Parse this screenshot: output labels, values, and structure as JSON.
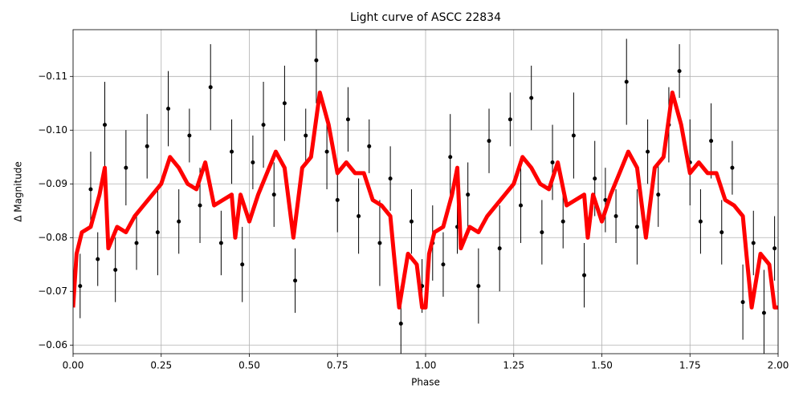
{
  "chart_data": {
    "type": "scatter",
    "title": "Light curve of ASCC 22834",
    "x_label": "Phase",
    "y_label": "Δ Magnitude",
    "xlim": [
      0,
      2
    ],
    "ylim": [
      -0.0584,
      -0.1187
    ],
    "xticks": [
      {
        "value": 0,
        "label": "0.00"
      },
      {
        "value": 0.25,
        "label": "0.25"
      },
      {
        "value": 0.5,
        "label": "0.50"
      },
      {
        "value": 0.75,
        "label": "0.75"
      },
      {
        "value": 1,
        "label": "1.00"
      },
      {
        "value": 1.25,
        "label": "1.25"
      },
      {
        "value": 1.5,
        "label": "1.50"
      },
      {
        "value": 1.75,
        "label": "1.75"
      },
      {
        "value": 2,
        "label": "2.00"
      }
    ],
    "yticks": [
      {
        "value": -0.11,
        "label": "−0.11"
      },
      {
        "value": -0.1,
        "label": "−0.10"
      },
      {
        "value": -0.09,
        "label": "−0.09"
      },
      {
        "value": -0.08,
        "label": "−0.08"
      },
      {
        "value": -0.07,
        "label": "−0.07"
      },
      {
        "value": -0.06,
        "label": "−0.06"
      }
    ],
    "grid": true,
    "points": {
      "color": "#000000",
      "x": [
        0.02,
        0.05,
        0.07,
        0.09,
        0.12,
        0.15,
        0.18,
        0.21,
        0.24,
        0.27,
        0.3,
        0.33,
        0.36,
        0.39,
        0.42,
        0.45,
        0.48,
        0.51,
        0.54,
        0.57,
        0.6,
        0.63,
        0.66,
        0.69,
        0.72,
        0.75,
        0.78,
        0.81,
        0.84,
        0.87,
        0.9,
        0.93,
        0.96,
        0.99,
        1.02,
        1.05,
        1.07,
        1.09,
        1.12,
        1.15,
        1.18,
        1.21,
        1.24,
        1.27,
        1.3,
        1.33,
        1.36,
        1.39,
        1.42,
        1.45,
        1.48,
        1.51,
        1.54,
        1.57,
        1.6,
        1.63,
        1.66,
        1.69,
        1.72,
        1.75,
        1.78,
        1.81,
        1.84,
        1.87,
        1.9,
        1.93,
        1.96,
        1.99
      ],
      "values": [
        -0.071,
        -0.089,
        -0.076,
        -0.101,
        -0.074,
        -0.093,
        -0.079,
        -0.097,
        -0.081,
        -0.104,
        -0.083,
        -0.099,
        -0.086,
        -0.108,
        -0.079,
        -0.096,
        -0.075,
        -0.094,
        -0.101,
        -0.088,
        -0.105,
        -0.072,
        -0.099,
        -0.113,
        -0.096,
        -0.087,
        -0.102,
        -0.084,
        -0.097,
        -0.079,
        -0.091,
        -0.064,
        -0.083,
        -0.071,
        -0.079,
        -0.075,
        -0.095,
        -0.082,
        -0.088,
        -0.071,
        -0.098,
        -0.078,
        -0.102,
        -0.086,
        -0.106,
        -0.081,
        -0.094,
        -0.083,
        -0.099,
        -0.073,
        -0.091,
        -0.087,
        -0.084,
        -0.109,
        -0.082,
        -0.096,
        -0.088,
        -0.101,
        -0.111,
        -0.094,
        -0.083,
        -0.098,
        -0.081,
        -0.093,
        -0.068,
        -0.079,
        -0.066,
        -0.078
      ],
      "errors": [
        0.006,
        0.007,
        0.005,
        0.008,
        0.006,
        0.007,
        0.005,
        0.006,
        0.008,
        0.007,
        0.006,
        0.005,
        0.007,
        0.008,
        0.006,
        0.006,
        0.007,
        0.005,
        0.008,
        0.006,
        0.007,
        0.006,
        0.005,
        0.008,
        0.007,
        0.006,
        0.006,
        0.007,
        0.005,
        0.008,
        0.006,
        0.007,
        0.006,
        0.005,
        0.007,
        0.006,
        0.008,
        0.005,
        0.006,
        0.007,
        0.006,
        0.008,
        0.005,
        0.007,
        0.006,
        0.006,
        0.007,
        0.005,
        0.008,
        0.006,
        0.007,
        0.006,
        0.005,
        0.008,
        0.007,
        0.006,
        0.006,
        0.007,
        0.005,
        0.008,
        0.006,
        0.007,
        0.006,
        0.005,
        0.007,
        0.006,
        0.008,
        0.006
      ]
    },
    "line": {
      "color": "#ff0000",
      "x": [
        0,
        0.01,
        0.025,
        0.05,
        0.075,
        0.09,
        0.1,
        0.125,
        0.15,
        0.175,
        0.2,
        0.225,
        0.25,
        0.275,
        0.3,
        0.325,
        0.35,
        0.375,
        0.4,
        0.425,
        0.45,
        0.46,
        0.475,
        0.5,
        0.525,
        0.55,
        0.575,
        0.6,
        0.625,
        0.65,
        0.675,
        0.7,
        0.725,
        0.75,
        0.775,
        0.8,
        0.825,
        0.85,
        0.875,
        0.9,
        0.91,
        0.925,
        0.95,
        0.975,
        0.99,
        1,
        1.01,
        1.025,
        1.05,
        1.075,
        1.09,
        1.1,
        1.125,
        1.15,
        1.175,
        1.2,
        1.225,
        1.25,
        1.275,
        1.3,
        1.325,
        1.35,
        1.375,
        1.4,
        1.425,
        1.45,
        1.46,
        1.475,
        1.5,
        1.525,
        1.55,
        1.575,
        1.6,
        1.625,
        1.65,
        1.675,
        1.7,
        1.725,
        1.75,
        1.775,
        1.8,
        1.825,
        1.85,
        1.875,
        1.9,
        1.91,
        1.925,
        1.95,
        1.975,
        1.99,
        2
      ],
      "values": [
        -0.067,
        -0.077,
        -0.081,
        -0.082,
        -0.088,
        -0.093,
        -0.078,
        -0.082,
        -0.081,
        -0.084,
        -0.086,
        -0.088,
        -0.09,
        -0.095,
        -0.093,
        -0.09,
        -0.089,
        -0.094,
        -0.086,
        -0.087,
        -0.088,
        -0.08,
        -0.088,
        -0.083,
        -0.088,
        -0.092,
        -0.096,
        -0.093,
        -0.08,
        -0.093,
        -0.095,
        -0.107,
        -0.101,
        -0.092,
        -0.094,
        -0.092,
        -0.092,
        -0.087,
        -0.086,
        -0.084,
        -0.077,
        -0.067,
        -0.077,
        -0.075,
        -0.067,
        -0.067,
        -0.077,
        -0.081,
        -0.082,
        -0.088,
        -0.093,
        -0.078,
        -0.082,
        -0.081,
        -0.084,
        -0.086,
        -0.088,
        -0.09,
        -0.095,
        -0.093,
        -0.09,
        -0.089,
        -0.094,
        -0.086,
        -0.087,
        -0.088,
        -0.08,
        -0.088,
        -0.083,
        -0.088,
        -0.092,
        -0.096,
        -0.093,
        -0.08,
        -0.093,
        -0.095,
        -0.107,
        -0.101,
        -0.092,
        -0.094,
        -0.092,
        -0.092,
        -0.087,
        -0.086,
        -0.084,
        -0.077,
        -0.067,
        -0.077,
        -0.075,
        -0.067,
        -0.067
      ]
    }
  }
}
